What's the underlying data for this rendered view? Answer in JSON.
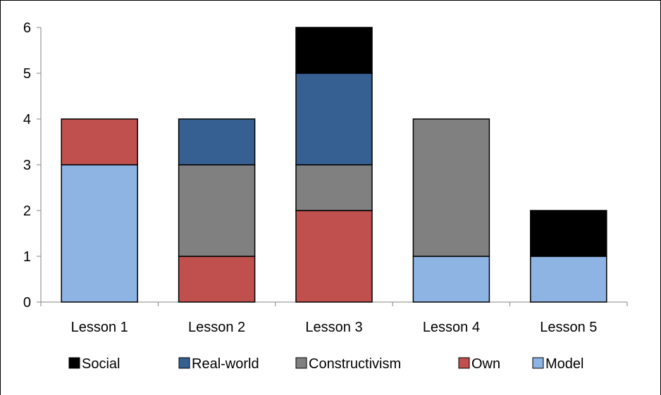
{
  "chart_data": {
    "type": "bar",
    "stacked": true,
    "title": "",
    "xlabel": "",
    "ylabel": "",
    "ylim": [
      0,
      6
    ],
    "yticks": [
      0,
      1,
      2,
      3,
      4,
      5,
      6
    ],
    "grid": false,
    "legend_position": "bottom",
    "categories": [
      "Lesson 1",
      "Lesson 2",
      "Lesson 3",
      "Lesson 4",
      "Lesson 5"
    ],
    "series": [
      {
        "name": "Model",
        "color": "#8eb4e3",
        "values": [
          3,
          0,
          0,
          1,
          1
        ]
      },
      {
        "name": "Own",
        "color": "#c0504d",
        "values": [
          1,
          1,
          2,
          0,
          0
        ]
      },
      {
        "name": "Constructivism",
        "color": "#808080",
        "values": [
          0,
          2,
          1,
          3,
          0
        ]
      },
      {
        "name": "Real-world",
        "color": "#366092",
        "values": [
          0,
          1,
          2,
          0,
          0
        ]
      },
      {
        "name": "Social",
        "color": "#000000",
        "values": [
          0,
          0,
          1,
          0,
          1
        ]
      }
    ],
    "legend_order": [
      "Social",
      "Real-world",
      "Constructivism",
      "Own",
      "Model"
    ]
  }
}
